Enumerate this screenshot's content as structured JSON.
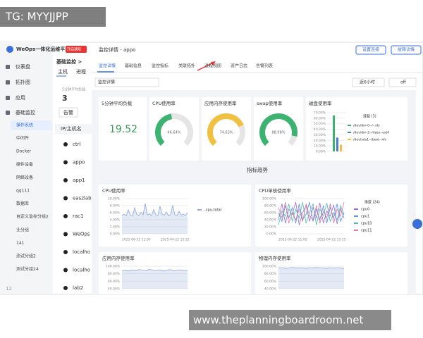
{
  "watermark_top": "TG: MYYJJPP",
  "watermark_bottom": "www.theplanningboardroom.net",
  "sidebar": {
    "brand": "WeOps一体化运维平台",
    "badge": "开启通知",
    "items": [
      "仪表盘",
      "拓扑图",
      "应用",
      "基础监控"
    ],
    "subitems": [
      "操作系统",
      "中间件",
      "Docker",
      "硬件设备",
      "网络设备",
      "qq111",
      "数据库",
      "自定义监控分组2",
      "业分组",
      "141",
      "测试分组2",
      "测试分组24"
    ],
    "footer": "12"
  },
  "list": {
    "breadcrumb": "基础监控 >",
    "tabs": [
      "主机",
      "进程"
    ],
    "stat_label": "5分钟平均负载",
    "stat_value": 3,
    "filter": "告警",
    "column": "IP/主机名",
    "hosts": [
      "ctrl",
      "appo",
      "app1",
      "easzlab",
      "rac1",
      "WeOps",
      "localho",
      "localho",
      "lab2"
    ]
  },
  "header": {
    "title": "监控详情 - appo",
    "buttons": [
      "设置连接",
      "故障详情"
    ]
  },
  "tabs": [
    "监控详情",
    "基础信息",
    "监控指标",
    "关联拓扑",
    "进程视图",
    "资产日志",
    "告警列表"
  ],
  "toolbar": {
    "select": "监控详情",
    "range": "近6小时",
    "refresh": "off"
  },
  "load": {
    "title": "5分钟平均负载",
    "value": 19.52
  },
  "gauges": [
    {
      "title": "CPU使用率",
      "value": 46.64,
      "label": "46.64%",
      "color": "#3cb371"
    },
    {
      "title": "应用内存使用率",
      "value": 74.63,
      "label": "74.63%",
      "color": "#f0c040"
    },
    {
      "title": "swap使用率",
      "value": 88.08,
      "label": "88.08%",
      "color": "#3cb371"
    }
  ],
  "disk": {
    "title": "磁盘使用率",
    "ylim": [
      0,
      70
    ],
    "yticks": [
      {
        "value": 0,
        "label": "0.00%"
      },
      {
        "value": 10,
        "label": "10.00%"
      },
      {
        "value": 20,
        "label": "20.00%"
      },
      {
        "value": 30,
        "label": "30.00%"
      },
      {
        "value": 40,
        "label": "40.00%"
      },
      {
        "value": 50,
        "label": "50.00%"
      },
      {
        "value": 60,
        "label": "60.00%"
      },
      {
        "value": 70,
        "label": "70.00%"
      }
    ],
    "legend_title": "挂载 (3)",
    "series": [
      {
        "name": "/dev/dm-0--/--xfs",
        "color": "#3cb371",
        "value": 65
      },
      {
        "name": "/dev/dm-2--/data--ext4",
        "color": "#4a7bd0",
        "value": 25
      },
      {
        "name": "/dev/sda1--/boot--xfs",
        "color": "#f0c040",
        "value": 12
      }
    ]
  },
  "section_title": "指标趋势",
  "charts": [
    {
      "title": "CPU使用率",
      "ylim": [
        0,
        10
      ],
      "yticks": [
        {
          "value": 0,
          "label": "0.00%"
        },
        {
          "value": 2,
          "label": "2.00%"
        },
        {
          "value": 4,
          "label": "4.00%"
        },
        {
          "value": 6,
          "label": "6.00%"
        },
        {
          "value": 8,
          "label": "8.00%"
        },
        {
          "value": 10,
          "label": "10.00%"
        }
      ],
      "xlabels": [
        "2025-04-22 11:00",
        "2025-04-22 15:25"
      ],
      "series": [
        {
          "name": "-cpu-total",
          "color": "#8fa8d8",
          "values": [
            5.2,
            5.6,
            5.1,
            6.8,
            5.3,
            5.0,
            7.4,
            5.5,
            5.2,
            6.1,
            5.4,
            8.6,
            5.3,
            5.7,
            5.1,
            6.9,
            5.4,
            5.2,
            7.8,
            5.6,
            5.3,
            6.2,
            5.1,
            5.5,
            8.1,
            5.4,
            5.2,
            6.4,
            5.3,
            5.6,
            5.2,
            6.0
          ]
        }
      ]
    },
    {
      "title": "CPU单核使用率",
      "ylim": [
        0,
        100
      ],
      "yticks": [
        {
          "value": 0,
          "label": "0.00%"
        },
        {
          "value": 20,
          "label": "20.00%"
        },
        {
          "value": 40,
          "label": "40.00%"
        },
        {
          "value": 60,
          "label": "60.00%"
        },
        {
          "value": 80,
          "label": "80.00%"
        },
        {
          "value": 100,
          "label": "100.00%"
        }
      ],
      "xlabels": [
        "2025-04-22 11:00",
        "2025-04-22 15:25"
      ],
      "legend_title": "维度 (24)",
      "series": [
        {
          "name": "cpu0",
          "color": "#9b6fd0",
          "values": [
            40,
            85,
            30,
            70,
            55,
            90,
            25,
            60,
            80,
            35,
            75,
            45,
            88,
            30,
            65,
            50,
            82,
            28,
            72,
            45
          ]
        },
        {
          "name": "cpu1",
          "color": "#5b8ff0",
          "values": [
            60,
            35,
            80,
            45,
            75,
            30,
            85,
            40,
            55,
            90,
            35,
            70,
            40,
            80,
            30,
            75,
            45,
            85,
            35,
            60
          ]
        },
        {
          "name": "cpu10",
          "color": "#4fc0b0",
          "values": [
            25,
            65,
            50,
            85,
            35,
            70,
            45,
            90,
            30,
            60,
            85,
            25,
            70,
            50,
            88,
            35,
            60,
            40,
            80,
            55
          ]
        },
        {
          "name": "cpu11",
          "color": "#e27aa0",
          "values": [
            75,
            45,
            90,
            30,
            60,
            40,
            70,
            35,
            85,
            50,
            40,
            80,
            30,
            65,
            45,
            85,
            30,
            70,
            50,
            90
          ]
        }
      ]
    },
    {
      "title": "应用内存使用率",
      "ylim": [
        40,
        100
      ],
      "yticks": [
        {
          "value": 40,
          "label": "40.00%"
        },
        {
          "value": 60,
          "label": "60.00%"
        },
        {
          "value": 80,
          "label": "80.00%"
        },
        {
          "value": 100,
          "label": "100.00%"
        }
      ],
      "series": [
        {
          "name": "mem",
          "color": "#8fa8d8",
          "values": [
            88,
            89,
            87,
            90,
            88,
            91,
            89,
            88,
            92,
            89,
            88,
            90,
            87,
            89,
            91,
            88,
            89,
            90,
            88,
            89
          ]
        }
      ]
    },
    {
      "title": "物理内存使用率",
      "ylim": [
        40,
        100
      ],
      "yticks": [
        {
          "value": 40,
          "label": "40.00%"
        },
        {
          "value": 60,
          "label": "60.00%"
        },
        {
          "value": 80,
          "label": "80.00%"
        },
        {
          "value": 100,
          "label": "100.00%"
        }
      ],
      "series": [
        {
          "name": "phys",
          "color": "#8fa8d8",
          "values": [
            95,
            96,
            94,
            95,
            97,
            95,
            96,
            95,
            94,
            96,
            95,
            97,
            96,
            95,
            94,
            96,
            95,
            96,
            95,
            94
          ]
        }
      ]
    }
  ]
}
